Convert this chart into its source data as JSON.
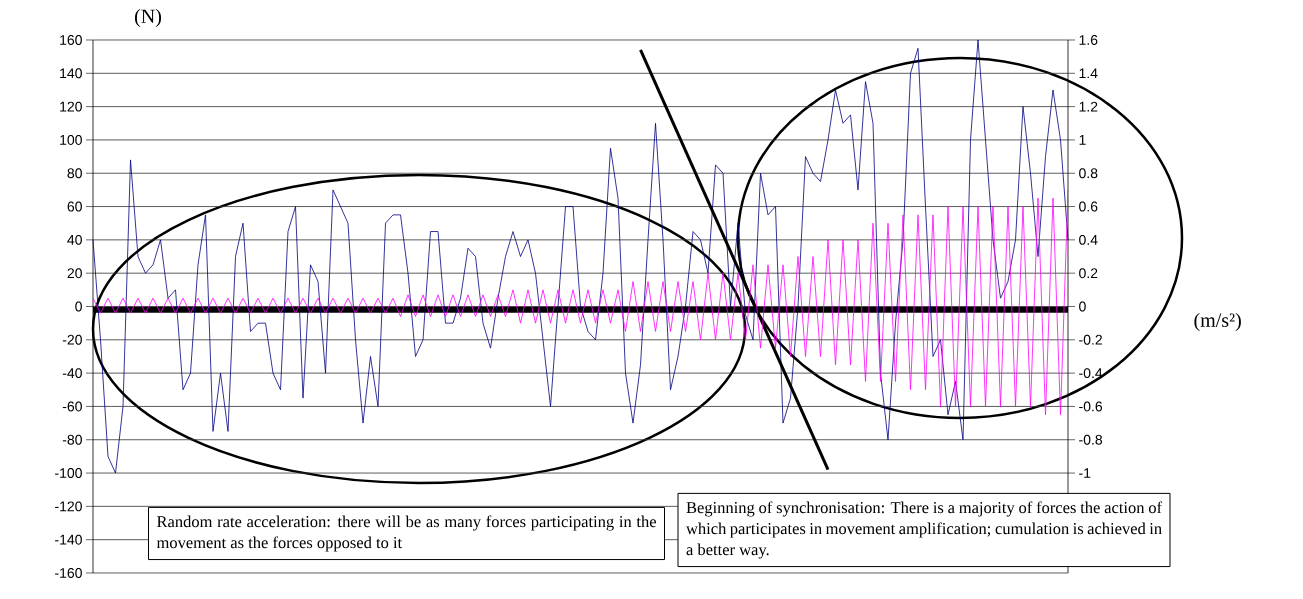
{
  "chart_data": {
    "type": "line",
    "ylabel": "(N)",
    "y2label": "(m/s²)",
    "annotations": [
      "Random rate acceleration: there will be as many forces participating in the movement as the forces opposed to it",
      "Beginning of synchronisation: There is a majority of forces the action of which participates in movement amplification; cumulation is achieved in a better way."
    ],
    "categories": [
      null,
      null,
      null,
      null,
      null,
      null,
      null,
      null,
      null,
      null,
      null,
      null,
      null,
      null,
      null,
      null,
      null,
      null,
      null,
      null,
      null,
      null,
      null,
      null,
      null,
      null,
      null,
      null,
      null,
      null,
      null,
      null,
      null,
      null,
      null,
      null,
      null,
      null,
      null,
      null,
      null,
      null,
      null,
      null,
      null,
      null,
      null,
      null,
      null,
      null,
      null,
      null,
      null,
      null,
      null,
      null,
      null,
      null,
      null,
      null,
      null,
      null,
      null,
      null,
      null,
      null,
      null,
      null,
      null,
      null,
      null,
      null,
      null,
      null,
      null,
      null,
      null,
      null,
      null,
      null,
      null,
      null,
      null,
      null,
      null,
      null,
      null,
      null,
      null,
      null,
      null,
      null,
      null,
      null,
      null,
      null,
      null,
      null,
      null,
      null,
      null,
      null,
      null,
      null,
      null,
      null,
      null,
      null,
      null,
      null,
      null,
      null,
      null,
      null,
      null,
      null,
      null,
      null,
      null,
      null,
      null,
      null,
      null,
      null,
      null,
      null,
      null,
      null,
      null,
      null,
      null
    ],
    "series": [
      {
        "color": "#000080",
        "values": [
          40,
          -20,
          -90,
          -100,
          -60,
          88,
          30,
          20,
          25,
          40,
          5,
          10,
          -50,
          -40,
          25,
          55,
          -75,
          -40,
          -75,
          30,
          50,
          -15,
          -10,
          -10,
          -40,
          -50,
          45,
          60,
          -55,
          25,
          15,
          -40,
          70,
          60,
          50,
          -20,
          -70,
          -30,
          -60,
          50,
          55,
          55,
          20,
          -30,
          -20,
          45,
          45,
          -10,
          -10,
          5,
          35,
          30,
          -10,
          -25,
          5,
          30,
          45,
          30,
          40,
          20,
          -20,
          -60,
          0,
          60,
          60,
          0,
          -15,
          -20,
          20,
          95,
          65,
          -40,
          -70,
          -35,
          40,
          110,
          40,
          -50,
          -30,
          0,
          45,
          40,
          20,
          85,
          80,
          0,
          50,
          -5,
          -20,
          80,
          55,
          60,
          -70,
          -55,
          0,
          90,
          80,
          75,
          100,
          130,
          110,
          115,
          70,
          135,
          110,
          -40,
          -80,
          -10,
          40,
          140,
          155,
          60,
          -30,
          -20,
          -65,
          -45,
          -80,
          100,
          160,
          100,
          40,
          5,
          15,
          40,
          120,
          80,
          30,
          90,
          130,
          100,
          40
        ]
      },
      {
        "type": "line",
        "color": "#000000",
        "values": [
          null,
          null,
          null,
          null,
          null,
          null,
          null,
          null,
          null,
          null,
          null,
          null,
          null,
          null,
          null,
          null,
          null,
          null,
          null,
          null,
          null,
          null,
          null,
          null,
          null,
          null,
          null,
          null,
          null,
          null,
          null,
          null,
          null,
          null,
          null,
          null,
          null,
          null,
          null,
          null,
          null,
          null,
          null,
          null,
          null,
          null,
          null,
          null,
          null,
          null,
          null,
          null,
          null,
          null,
          null,
          null,
          null,
          null,
          null,
          null,
          null,
          null,
          null,
          null,
          null,
          null,
          null,
          null,
          null,
          null,
          null,
          null,
          null,
          154,
          null,
          null,
          null,
          null,
          null,
          null,
          null,
          null,
          null,
          null,
          null,
          null,
          null,
          null,
          null,
          null,
          null,
          null,
          null,
          null,
          null,
          null,
          null,
          null,
          -98,
          null,
          null,
          null,
          null,
          null,
          null,
          null,
          null,
          null,
          null,
          null,
          null,
          null,
          null,
          null,
          null,
          null,
          null,
          null,
          null,
          null,
          null,
          null,
          null,
          null,
          null,
          null,
          null,
          null,
          null,
          null,
          null
        ]
      },
      {
        "color": "#ff00ff",
        "axis": "y2",
        "values": [
          0.05,
          -0.04,
          0.05,
          -0.04,
          0.05,
          -0.04,
          0.05,
          -0.04,
          0.05,
          -0.04,
          0.05,
          -0.04,
          0.05,
          -0.04,
          0.05,
          -0.04,
          0.05,
          -0.04,
          0.05,
          -0.04,
          0.05,
          -0.04,
          0.05,
          -0.04,
          0.05,
          -0.04,
          0.05,
          -0.04,
          0.05,
          -0.04,
          0.05,
          -0.04,
          0.05,
          -0.04,
          0.05,
          -0.04,
          0.05,
          -0.04,
          0.05,
          -0.04,
          0.05,
          -0.06,
          0.07,
          -0.06,
          0.07,
          -0.06,
          0.07,
          -0.06,
          0.07,
          -0.06,
          0.07,
          -0.06,
          0.07,
          -0.06,
          0.07,
          -0.06,
          0.1,
          -0.1,
          0.1,
          -0.1,
          0.1,
          -0.1,
          0.1,
          -0.1,
          0.1,
          -0.1,
          0.1,
          -0.1,
          0.1,
          -0.1,
          0.1,
          -0.15,
          0.15,
          -0.15,
          0.15,
          -0.15,
          0.15,
          -0.15,
          0.15,
          -0.15,
          0.15,
          -0.2,
          0.2,
          -0.2,
          0.2,
          -0.2,
          0.2,
          -0.2,
          0.25,
          -0.25,
          0.25,
          -0.25,
          0.25,
          -0.3,
          0.3,
          -0.3,
          0.3,
          -0.3,
          0.4,
          -0.35,
          0.4,
          -0.35,
          0.4,
          -0.45,
          0.5,
          -0.45,
          0.5,
          -0.45,
          0.55,
          -0.5,
          0.55,
          -0.5,
          0.55,
          -0.6,
          0.6,
          -0.6,
          0.6,
          -0.6,
          0.6,
          -0.6,
          0.6,
          -0.6,
          0.6,
          -0.6,
          0.6,
          -0.6,
          0.65,
          -0.65,
          0.65,
          -0.65,
          0.7
        ]
      }
    ],
    "ylim": [
      -160,
      160
    ],
    "yticks": [
      -160,
      -140,
      -120,
      -100,
      -80,
      -60,
      -40,
      -20,
      0,
      20,
      40,
      60,
      80,
      100,
      120,
      140,
      160
    ],
    "y2lim": [
      -1.6,
      1.6
    ],
    "y2ticks": [
      -1,
      -0.8,
      -0.6,
      -0.4,
      -0.2,
      0,
      0.2,
      0.4,
      0.6,
      0.8,
      1,
      1.2,
      1.4,
      1.6
    ],
    "grid": "y",
    "ref_lines": [
      {
        "axis": "y",
        "value": -2,
        "color": "#000000"
      }
    ]
  }
}
